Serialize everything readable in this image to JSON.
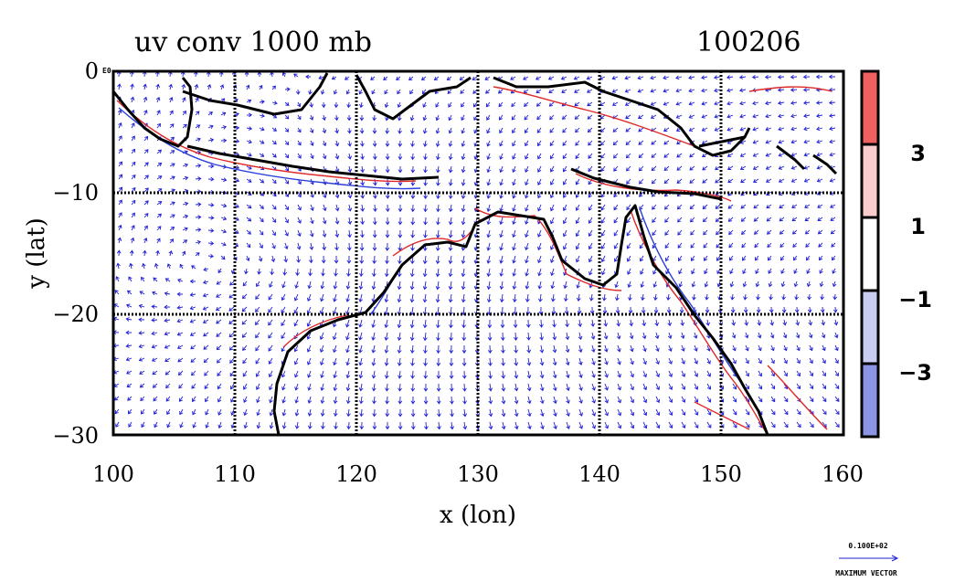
{
  "title": "uv conv 1000 mb",
  "date_label": "100206",
  "map": {
    "lon_range": [
      100,
      160
    ],
    "lat_range": [
      -30,
      0
    ],
    "x_ticks": [
      "100",
      "110",
      "120",
      "130",
      "140",
      "150",
      "160"
    ],
    "y_ticks": [
      "0",
      "−10",
      "−20",
      "−30"
    ],
    "x_label": "x (lon)",
    "y_label": "y (lat)",
    "corner_tag": "E0",
    "gridlines": true,
    "colors": {
      "coast": "#000000",
      "vectors": "#1f1fd6",
      "positive": "#e02828",
      "negative": "#2b3fd8"
    }
  },
  "colorbar": {
    "labels": [
      "3",
      "1",
      "−1",
      "−3"
    ],
    "colors": [
      "#ef6060",
      "#f8cccc",
      "#ffffff",
      "#c9cdf0",
      "#8c95e4"
    ]
  },
  "vector_key": {
    "magnitude": "0.100E+02",
    "caption": "MAXIMUM VECTOR"
  }
}
